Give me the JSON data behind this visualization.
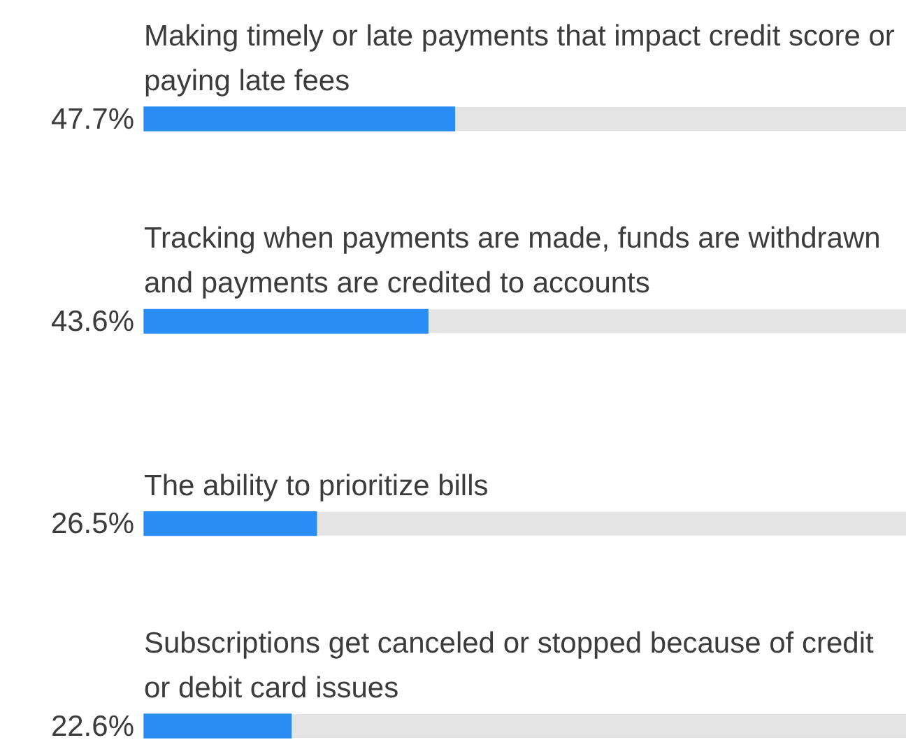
{
  "chart_data": {
    "type": "bar",
    "orientation": "horizontal",
    "categories": [
      "Making timely or late payments that impact credit score or paying late fees",
      "Tracking when payments are made, funds are withdrawn and payments are credited to accounts",
      "The ability to prioritize bills",
      "Subscriptions get canceled or stopped because of credit or debit card issues"
    ],
    "values": [
      47.7,
      43.6,
      26.5,
      22.6
    ],
    "color": "#2a8cf5",
    "value_labels": [
      "47.7%",
      "43.6%",
      "26.5%",
      "22.6%"
    ],
    "xlim": [
      0,
      117
    ],
    "legend": false,
    "tick_labels": false
  }
}
